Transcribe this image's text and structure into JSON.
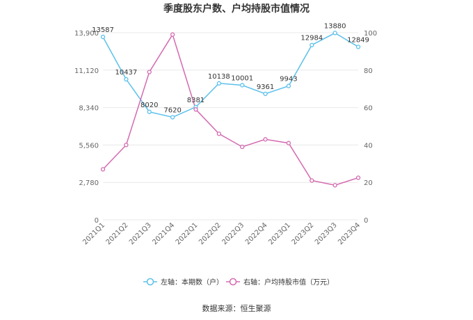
{
  "chart_data": {
    "type": "line",
    "title": "季度股东户数、户均持股市值情况",
    "categories": [
      "2021Q1",
      "2021Q2",
      "2021Q3",
      "2021Q4",
      "2022Q1",
      "2022Q2",
      "2022Q3",
      "2022Q4",
      "2023Q1",
      "2023Q2",
      "2023Q3",
      "2023Q4"
    ],
    "left_axis": {
      "ticks": [
        "0",
        "2,780",
        "5,560",
        "8,340",
        "11,120",
        "13,900"
      ],
      "ylim": [
        0,
        13900
      ]
    },
    "right_axis": {
      "ticks": [
        "0",
        "20",
        "40",
        "60",
        "80",
        "100"
      ],
      "ylim": [
        0,
        100
      ]
    },
    "series": [
      {
        "name": "左轴：本期数（户）",
        "axis": "left",
        "color": "#5bc0eb",
        "values": [
          13587,
          10437,
          8020,
          7620,
          8381,
          10138,
          10001,
          9361,
          9943,
          12984,
          13880,
          12849
        ],
        "labels": [
          "13587",
          "10437",
          "8020",
          "7620",
          "8381",
          "10138",
          "10001",
          "9361",
          "9943",
          "12984",
          "13880",
          "12849"
        ]
      },
      {
        "name": "右轴：户均持股市值（万元）",
        "axis": "right",
        "color": "#d46ab0",
        "values": [
          27,
          40,
          79,
          99,
          59,
          46,
          39,
          43,
          41,
          21,
          18.5,
          22.5
        ]
      }
    ],
    "grid": true,
    "legend_position": "bottom"
  },
  "source_text": "数据来源：恒生聚源"
}
